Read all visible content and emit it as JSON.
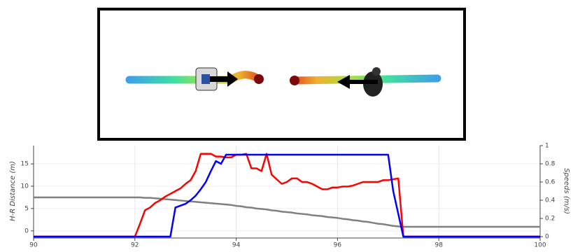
{
  "chart_data": {
    "type": "line",
    "x": [
      90,
      91,
      92,
      92.1,
      92.2,
      92.3,
      92.4,
      92.5,
      92.6,
      92.7,
      92.8,
      92.9,
      93.0,
      93.1,
      93.2,
      93.3,
      93.4,
      93.5,
      93.6,
      93.7,
      93.8,
      93.9,
      94.0,
      94.1,
      94.2,
      94.3,
      94.4,
      94.5,
      94.6,
      94.7,
      94.8,
      94.9,
      95.0,
      95.1,
      95.2,
      95.3,
      95.4,
      95.5,
      95.6,
      95.7,
      95.8,
      95.9,
      96.0,
      96.1,
      96.2,
      96.3,
      96.4,
      96.5,
      96.6,
      96.7,
      96.8,
      96.9,
      97.0,
      97.1,
      97.2,
      97.3,
      97.4,
      98,
      99,
      100
    ],
    "series": [
      {
        "color": "#808080",
        "axis": "y",
        "values": [
          7.5,
          7.5,
          7.5,
          7.5,
          7.4,
          7.4,
          7.3,
          7.2,
          7.1,
          7.0,
          6.9,
          6.8,
          6.7,
          6.6,
          6.5,
          6.4,
          6.3,
          6.2,
          6.1,
          6.0,
          5.9,
          5.8,
          5.6,
          5.5,
          5.3,
          5.2,
          5.0,
          4.9,
          4.8,
          4.6,
          4.5,
          4.3,
          4.2,
          4.1,
          3.9,
          3.8,
          3.7,
          3.5,
          3.4,
          3.3,
          3.1,
          3.0,
          2.9,
          2.7,
          2.6,
          2.4,
          2.3,
          2.1,
          2.0,
          1.8,
          1.6,
          1.5,
          1.3,
          1.1,
          1.0,
          0.9,
          0.9,
          0.9,
          0.9,
          0.9
        ]
      },
      {
        "color": "#ff0000",
        "axis": "y2",
        "values": [
          0,
          0,
          0,
          0.14,
          0.29,
          0.32,
          0.37,
          0.4,
          0.44,
          0.47,
          0.5,
          0.53,
          0.58,
          0.62,
          0.72,
          0.91,
          0.91,
          0.91,
          0.88,
          0.88,
          0.87,
          0.87,
          0.9,
          0.9,
          0.91,
          0.75,
          0.75,
          0.72,
          0.91,
          0.68,
          0.63,
          0.58,
          0.6,
          0.64,
          0.64,
          0.6,
          0.6,
          0.58,
          0.55,
          0.52,
          0.52,
          0.54,
          0.54,
          0.55,
          0.55,
          0.56,
          0.58,
          0.6,
          0.6,
          0.6,
          0.6,
          0.62,
          0.62,
          0.63,
          0.64,
          0,
          0,
          0,
          0,
          0
        ]
      },
      {
        "color": "#0000ff",
        "axis": "y2",
        "values": [
          0,
          0,
          0,
          0,
          0,
          0,
          0,
          0,
          0,
          0,
          0.32,
          0.34,
          0.36,
          0.4,
          0.45,
          0.52,
          0.6,
          0.72,
          0.83,
          0.8,
          0.9,
          0.9,
          0.9,
          0.9,
          0.9,
          0.9,
          0.9,
          0.9,
          0.9,
          0.9,
          0.9,
          0.9,
          0.9,
          0.9,
          0.9,
          0.9,
          0.9,
          0.9,
          0.9,
          0.9,
          0.9,
          0.9,
          0.9,
          0.9,
          0.9,
          0.9,
          0.9,
          0.9,
          0.9,
          0.9,
          0.9,
          0.9,
          0.9,
          0.5,
          0.25,
          0,
          0,
          0,
          0,
          0
        ]
      }
    ],
    "xlim": [
      90,
      100
    ],
    "xticks": [
      90,
      92,
      94,
      96,
      98,
      100
    ],
    "ylim": [
      -1.6,
      19.1
    ],
    "yticks": [
      0,
      5,
      10,
      15
    ],
    "y2lim": [
      -0.015,
      1.0
    ],
    "y2ticks": [
      0,
      0.2,
      0.4,
      0.6,
      0.8,
      1
    ],
    "ylabel": "H-R Distance (m)",
    "y2label": "Speeds (m/s)",
    "grid": true
  }
}
